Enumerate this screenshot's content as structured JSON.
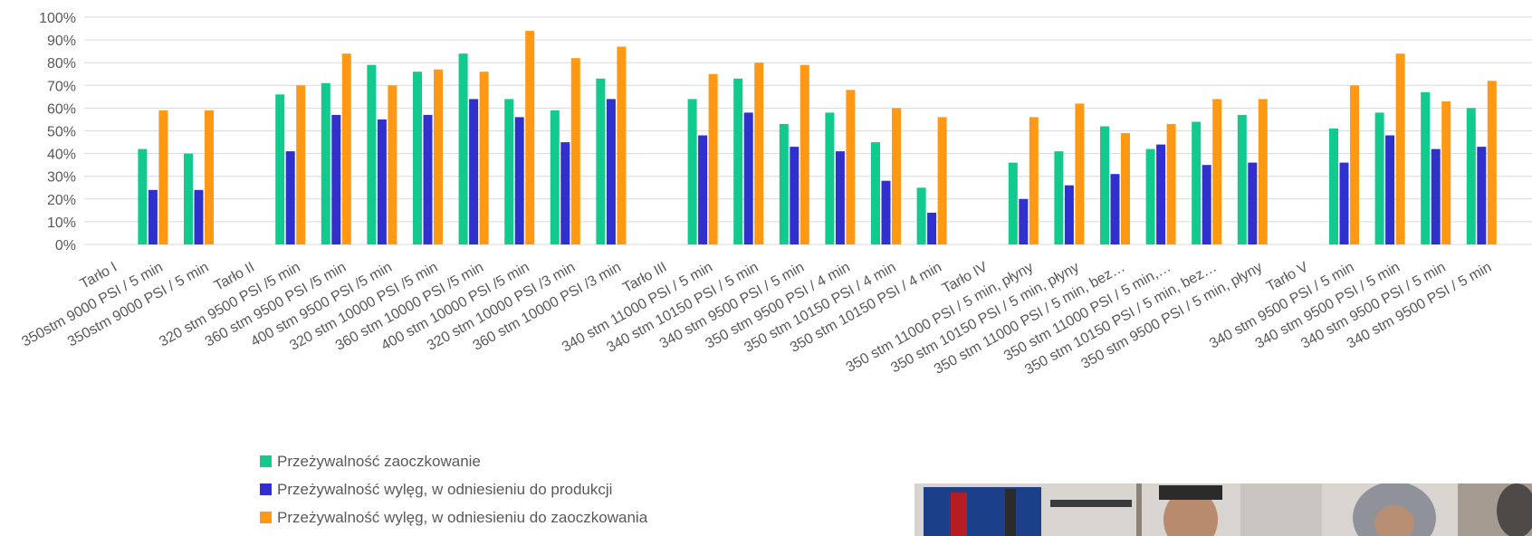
{
  "chart_data": {
    "type": "bar",
    "ylim": [
      0,
      100
    ],
    "yticks": [
      "0%",
      "10%",
      "20%",
      "30%",
      "40%",
      "50%",
      "60%",
      "70%",
      "80%",
      "90%",
      "100%"
    ],
    "categories": [
      "Tarło I",
      "350stm 9000 PSI / 5 min",
      "350stm 9000 PSI / 5 min",
      "Tarło II",
      "320 stm 9500 PSI /5 min",
      "360 stm 9500 PSI /5 min",
      "400 stm 9500 PSI /5 min",
      "320 stm 10000 PSI /5 min",
      "360 stm 10000 PSI /5 min",
      "400 stm 10000 PSI /5 min",
      "320 stm 10000 PSI /3 min",
      "360 stm 10000 PSI /3 min",
      "Tarło III",
      "340 stm 11000 PSI / 5 min",
      "340 stm 10150 PSI / 5 min",
      "340 stm 9500 PSI / 5 min",
      "350 stm 9500 PSI / 4 min",
      "350 stm 10150 PSI / 4 min",
      "350 stm 10150 PSI / 4 min",
      "Tarło IV",
      "350 stm 11000 PSI / 5 min, płyny",
      "350 stm 10150 PSI / 5 min, płyny",
      "350 stm 11000 PSI / 5 min, bez…",
      "350 stm 11000 PSI / 5 min,…",
      "350 stm 10150 PSI / 5 min, bez…",
      "350 stm 9500 PSI / 5 min, płyny",
      "Tarło V",
      "340 stm 9500 PSI / 5 min",
      "340 stm 9500 PSI / 5 min",
      "340 stm 9500 PSI / 5 min",
      "340 stm 9500 PSI / 5 min"
    ],
    "series": [
      {
        "name": "Przeżywalność zaoczkowanie",
        "color": "#12c98e",
        "values": [
          null,
          42,
          40,
          null,
          66,
          71,
          79,
          76,
          84,
          64,
          59,
          73,
          null,
          64,
          73,
          53,
          58,
          45,
          25,
          null,
          36,
          41,
          52,
          42,
          54,
          57,
          null,
          51,
          58,
          67,
          60
        ]
      },
      {
        "name": "Przeżywalność wylęg, w odniesieniu do produkcji",
        "color": "#3030cc",
        "values": [
          null,
          24,
          24,
          null,
          41,
          57,
          55,
          57,
          64,
          56,
          45,
          64,
          null,
          48,
          58,
          43,
          41,
          28,
          14,
          null,
          20,
          26,
          31,
          44,
          35,
          36,
          null,
          36,
          48,
          42,
          43
        ]
      },
      {
        "name": "Przeżywalność wylęg, w odniesieniu do zaoczkowania",
        "color": "#ff9812",
        "values": [
          null,
          59,
          59,
          null,
          70,
          84,
          70,
          77,
          76,
          94,
          82,
          87,
          null,
          75,
          80,
          79,
          68,
          60,
          56,
          null,
          56,
          62,
          49,
          53,
          64,
          64,
          null,
          70,
          84,
          63,
          72
        ]
      }
    ]
  }
}
